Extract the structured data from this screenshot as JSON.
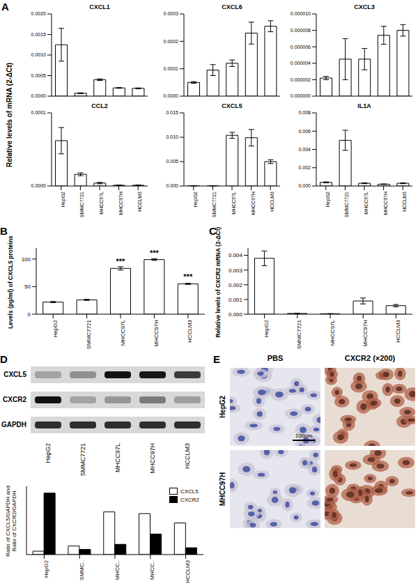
{
  "chart_data": [
    {
      "panel": "A",
      "type": "bar",
      "title": "CXCL1",
      "ylabel": "Relative levels of mRNA (2-ΔCt)",
      "categories": [
        "HepG2",
        "SMMC7721",
        "MHCC97L",
        "MHCC97H",
        "HCCLM3"
      ],
      "values": [
        0.00125,
        7e-05,
        0.0004,
        0.0002,
        0.00019
      ],
      "errors": [
        0.0004,
        1e-05,
        2e-05,
        1e-05,
        1e-05
      ],
      "color": "#ffffff",
      "ylim": [
        0,
        0.002
      ],
      "yticks": [
        {
          "value": 0,
          "label": "0.0000"
        },
        {
          "value": 0.0005,
          "label": "0.0005"
        },
        {
          "value": 0.001,
          "label": "0.0010"
        },
        {
          "value": 0.0015,
          "label": "0.0015"
        },
        {
          "value": 0.002,
          "label": "0.0020"
        }
      ],
      "tick_labels": "y"
    },
    {
      "panel": "A",
      "type": "bar",
      "title": "CXCL6",
      "categories": [
        "HepG2",
        "SMMC7721",
        "MHCC97L",
        "MHCC97H",
        "HCCLM3"
      ],
      "values": [
        5e-05,
        9.5e-05,
        0.00012,
        0.00023,
        0.000255
      ],
      "errors": [
        3e-06,
        2e-05,
        1.2e-05,
        4e-05,
        2e-05
      ],
      "color": "#ffffff",
      "ylim": [
        0,
        0.0003
      ],
      "yticks": [
        {
          "value": 0,
          "label": "0.0000"
        },
        {
          "value": 0.0001,
          "label": "0.0001"
        },
        {
          "value": 0.0002,
          "label": "0.0002"
        },
        {
          "value": 0.0003,
          "label": "0.0003"
        }
      ],
      "tick_labels": "y"
    },
    {
      "panel": "A",
      "type": "bar",
      "title": "CXCL3",
      "categories": [
        "HepG2",
        "SMMC7721",
        "MHCC97L",
        "MHCC97H",
        "HCCLM3"
      ],
      "values": [
        2.2e-06,
        4.5e-06,
        4.5e-06,
        7.4e-06,
        8e-06
      ],
      "errors": [
        2e-07,
        2.5e-06,
        1.3e-06,
        1.1e-06,
        7e-07
      ],
      "color": "#ffffff",
      "ylim": [
        0,
        1e-05
      ],
      "yticks": [
        {
          "value": 0,
          "label": "0.000000"
        },
        {
          "value": 2e-06,
          "label": "0.000002"
        },
        {
          "value": 4e-06,
          "label": "0.000004"
        },
        {
          "value": 6e-06,
          "label": "0.000006"
        },
        {
          "value": 8e-06,
          "label": "0.000008"
        },
        {
          "value": 1e-05,
          "label": "0.000010"
        }
      ],
      "tick_labels": "y"
    },
    {
      "panel": "A",
      "type": "bar",
      "title": "CCL2",
      "categories": [
        "HepG2",
        "SMMC7721",
        "MHCC97L",
        "MHCC97H",
        "HCCLM3"
      ],
      "values": [
        6.2e-05,
        1.6e-05,
        4e-06,
        1e-06,
        1e-06
      ],
      "errors": [
        1.8e-05,
        2e-06,
        1e-06,
        5e-07,
        5e-07
      ],
      "color": "#ffffff",
      "ylim": [
        0,
        0.0001
      ],
      "yticks": [
        {
          "value": 0,
          "label": "0.0000"
        },
        {
          "value": 0.0001,
          "label": "0.0001"
        }
      ]
    },
    {
      "panel": "A",
      "type": "bar",
      "title": "CXCL5",
      "categories": [
        "HepG2",
        "SMMC7721",
        "MHCC97L",
        "MHCC97H",
        "HCCLM3"
      ],
      "values": [
        3e-05,
        3e-05,
        0.0104,
        0.0099,
        0.005
      ],
      "errors": [
        1e-05,
        1e-05,
        0.0006,
        0.0017,
        0.0004
      ],
      "color": "#ffffff",
      "ylim": [
        0,
        0.015
      ],
      "yticks": [
        {
          "value": 0,
          "label": "0.000"
        },
        {
          "value": 0.005,
          "label": "0.005"
        },
        {
          "value": 0.01,
          "label": "0.010"
        },
        {
          "value": 0.015,
          "label": "0.015"
        }
      ]
    },
    {
      "panel": "A",
      "type": "bar",
      "title": "IL1A",
      "categories": [
        "HepG2",
        "SMMC7721",
        "MHCC97L",
        "MHCC97H",
        "HCCLM3"
      ],
      "values": [
        0.0004,
        0.005,
        0.0003,
        0.0002,
        0.0003
      ],
      "errors": [
        5e-05,
        0.0011,
        5e-05,
        3e-05,
        5e-05
      ],
      "color": "#ffffff",
      "ylim": [
        0,
        0.008
      ],
      "yticks": [
        {
          "value": 0,
          "label": "0.000"
        },
        {
          "value": 0.002,
          "label": "0.002"
        },
        {
          "value": 0.004,
          "label": "0.004"
        },
        {
          "value": 0.006,
          "label": "0.006"
        },
        {
          "value": 0.008,
          "label": "0.008"
        }
      ]
    },
    {
      "panel": "B",
      "type": "bar",
      "ylabel": "Levels (pg/ml) of CXCL5 proteins",
      "categories": [
        "HepG2",
        "SMMC7721",
        "MHCC97L",
        "MHCC97H",
        "HCCLM3"
      ],
      "values": [
        22,
        26,
        83,
        99,
        55
      ],
      "errors": [
        1,
        1,
        3,
        1.5,
        1
      ],
      "significance": [
        null,
        null,
        "***",
        "***",
        "***"
      ],
      "color": "#ffffff",
      "ylim": [
        0,
        120
      ],
      "yticks": [
        0,
        50,
        100
      ]
    },
    {
      "panel": "C",
      "type": "bar",
      "ylabel": "Relative levels of CXCR2 mRNA (2-ΔCt)",
      "categories": [
        "HepG2",
        "SMMC7721",
        "MHCC97L",
        "MHCC97H",
        "HCCLM3"
      ],
      "values": [
        0.0038,
        5e-05,
        3e-05,
        0.0009,
        0.00058
      ],
      "errors": [
        0.0005,
        2e-05,
        1e-05,
        0.0002,
        8e-05
      ],
      "color": "#ffffff",
      "ylim": [
        0,
        0.0045
      ],
      "yticks": [
        {
          "value": 0,
          "label": "0.000"
        },
        {
          "value": 0.001,
          "label": "0.001"
        },
        {
          "value": 0.002,
          "label": "0.002"
        },
        {
          "value": 0.003,
          "label": "0.003"
        },
        {
          "value": 0.004,
          "label": "0.004"
        }
      ]
    },
    {
      "panel": "D",
      "type": "bar",
      "ylabel": [
        "Ratio of CXCL5/GAPDH and",
        "Ratio of CXCR2/GAPDH"
      ],
      "categories": [
        "HepG2",
        "SMMC..",
        "MHCC..",
        "MHCC..",
        "HCCLM3"
      ],
      "series": [
        {
          "name": "CXCL5",
          "color": "#ffffff",
          "values": [
            0.04,
            0.1,
            0.5,
            0.48,
            0.37
          ]
        },
        {
          "name": "CXCR2",
          "color": "#000000",
          "values": [
            0.72,
            0.06,
            0.12,
            0.24,
            0.08
          ]
        }
      ],
      "ylim": [
        0,
        0.8
      ],
      "legend": "upper right",
      "tick_labels": "x"
    }
  ],
  "blot": {
    "panel": "D",
    "rows": [
      "CXCL5",
      "CXCR2",
      "GAPDH"
    ],
    "lanes": [
      "HepG2",
      "SMMC7721",
      "MHCC97L",
      "MHCC97H",
      "HCCLM3"
    ]
  },
  "micrographs": {
    "panel": "E",
    "columns": [
      "PBS",
      "CXCR2"
    ],
    "magnification": "(×200)",
    "rows": [
      "HepG2",
      "MHCC97H"
    ],
    "scale_bar": "100μm"
  }
}
